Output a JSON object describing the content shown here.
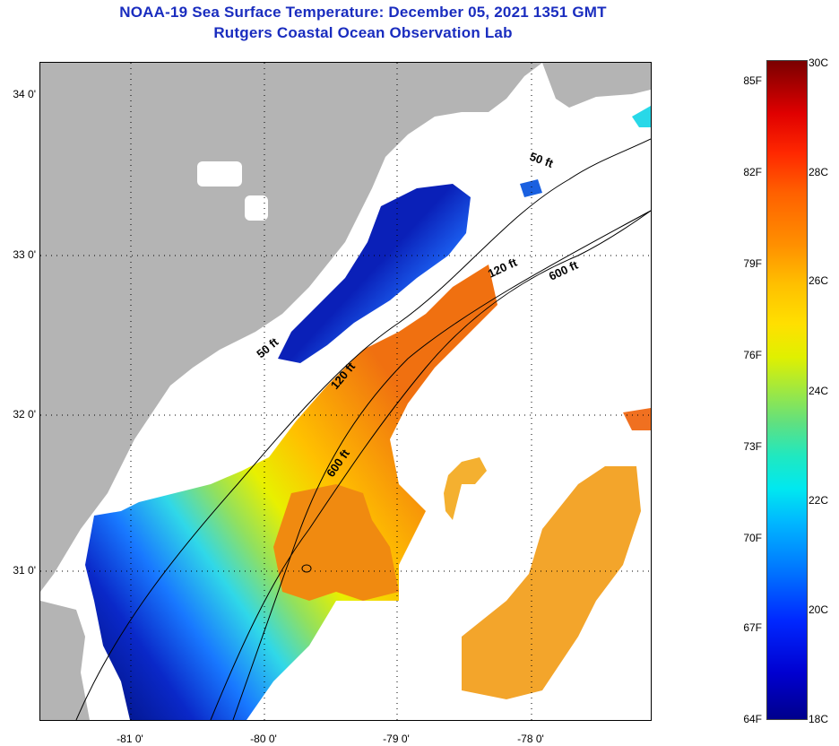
{
  "title": {
    "line1": "NOAA-19 Sea Surface Temperature:  December 05, 2021 1351 GMT",
    "line2": "Rutgers Coastal Ocean Observation Lab"
  },
  "map": {
    "lat_labels": [
      "34 0'",
      "33 0'",
      "32 0'",
      "31 0'"
    ],
    "lon_labels": [
      "-81 0'",
      "-80 0'",
      "-79 0'",
      "-78 0'"
    ],
    "contour_labels": [
      "50 ft",
      "120 ft",
      "600 ft",
      "50 ft",
      "120 ft",
      "600 ft"
    ],
    "colors": {
      "land": "#b4b4b4",
      "cloud_or_no_data": "#ffffff",
      "cold": "#0a1fa8",
      "warm": "#f07a10"
    }
  },
  "colorbar": {
    "fahrenheit": [
      "85F",
      "82F",
      "79F",
      "76F",
      "73F",
      "70F",
      "67F",
      "64F"
    ],
    "celsius": [
      "30C",
      "28C",
      "26C",
      "24C",
      "22C",
      "20C",
      "18C"
    ]
  }
}
